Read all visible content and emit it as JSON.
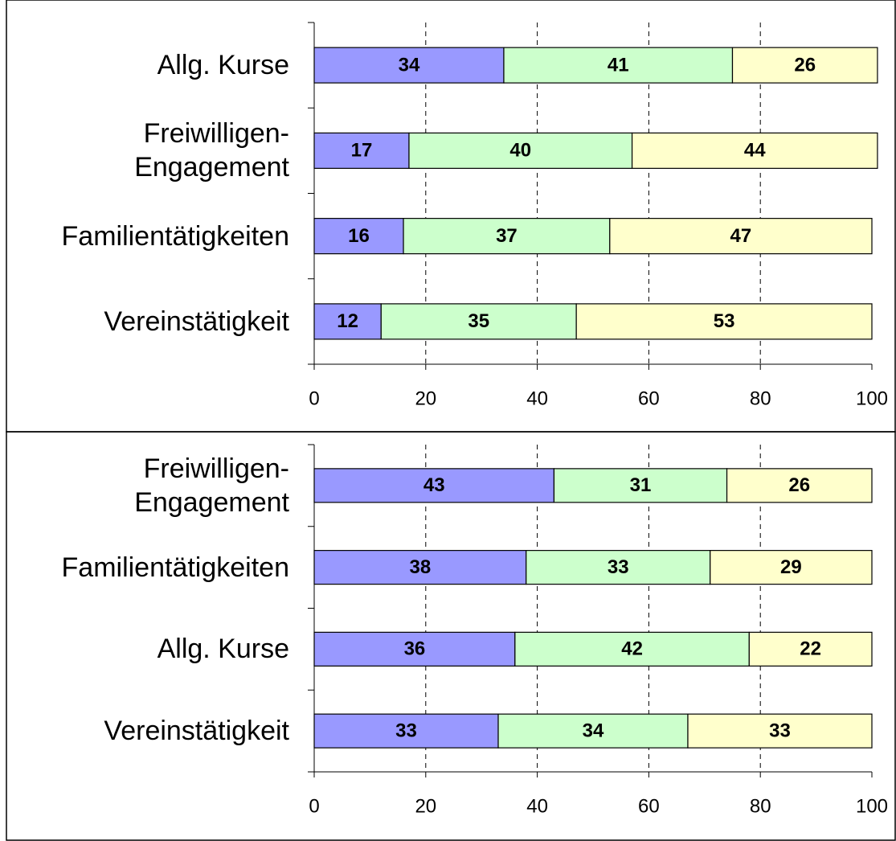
{
  "chart_data": [
    {
      "type": "stacked_bar_horizontal",
      "categories": [
        "Allg. Kurse",
        "Freiwilligen-\nEngagement",
        "Familientätigkeiten",
        "Vereinstätigkeit"
      ],
      "series": [
        {
          "color": "#9999ff",
          "values": [
            34,
            17,
            16,
            12
          ]
        },
        {
          "color": "#ccffcc",
          "values": [
            41,
            40,
            37,
            35
          ]
        },
        {
          "color": "#ffffcc",
          "values": [
            26,
            44,
            47,
            53
          ]
        }
      ],
      "xlim": [
        0,
        100
      ],
      "xticks": [
        0,
        20,
        40,
        60,
        80,
        100
      ],
      "grid": true
    },
    {
      "type": "stacked_bar_horizontal",
      "categories": [
        "Freiwilligen-\nEngagement",
        "Familientätigkeiten",
        "Allg. Kurse",
        "Vereinstätigkeit"
      ],
      "series": [
        {
          "color": "#9999ff",
          "values": [
            43,
            38,
            36,
            33
          ]
        },
        {
          "color": "#ccffcc",
          "values": [
            31,
            33,
            42,
            34
          ]
        },
        {
          "color": "#ffffcc",
          "values": [
            26,
            29,
            22,
            33
          ]
        }
      ],
      "xlim": [
        0,
        100
      ],
      "xticks": [
        0,
        20,
        40,
        60,
        80,
        100
      ],
      "grid": true
    }
  ]
}
